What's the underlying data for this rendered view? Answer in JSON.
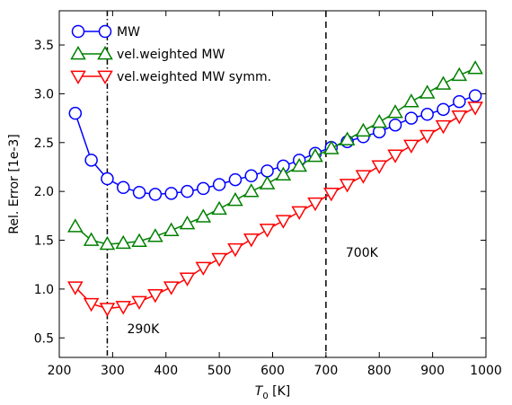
{
  "chart_data": {
    "type": "line",
    "xlabel": "T",
    "xlabel_sub": "0",
    "xlabel_unit": " [K]",
    "ylabel": "Rel. Error [1e-3]",
    "xlim": [
      200,
      1000
    ],
    "ylim": [
      0.3,
      3.85
    ],
    "xticks": [
      200,
      300,
      400,
      500,
      600,
      700,
      800,
      900,
      1000
    ],
    "yticks": [
      0.5,
      1.0,
      1.5,
      2.0,
      2.5,
      3.0,
      3.5
    ],
    "ytick_labels": [
      "0.5",
      "1.0",
      "1.5",
      "2.0",
      "2.5",
      "3.0",
      "3.5"
    ],
    "grid": false,
    "legend_position": "top-left",
    "vlines": [
      {
        "x": 290,
        "style": "dashdot",
        "label": "290K"
      },
      {
        "x": 700,
        "style": "dashed",
        "label": "700K"
      }
    ],
    "series": [
      {
        "name": "MW",
        "color": "#0000ff",
        "marker": "circle",
        "x": [
          230,
          260,
          290,
          320,
          350,
          380,
          410,
          440,
          470,
          500,
          530,
          560,
          590,
          620,
          650,
          680,
          710,
          740,
          770,
          800,
          830,
          860,
          890,
          920,
          950,
          980
        ],
        "y": [
          2.8,
          2.32,
          2.13,
          2.04,
          1.99,
          1.97,
          1.98,
          2.0,
          2.03,
          2.07,
          2.12,
          2.16,
          2.21,
          2.26,
          2.32,
          2.39,
          2.45,
          2.51,
          2.56,
          2.61,
          2.68,
          2.75,
          2.79,
          2.84,
          2.92,
          2.98
        ]
      },
      {
        "name": "vel.weighted MW",
        "color": "#008000",
        "marker": "triangle-up",
        "x": [
          230,
          260,
          290,
          320,
          350,
          380,
          410,
          440,
          470,
          500,
          530,
          560,
          590,
          620,
          650,
          680,
          710,
          740,
          770,
          800,
          830,
          860,
          890,
          920,
          950,
          980
        ],
        "y": [
          1.64,
          1.5,
          1.46,
          1.47,
          1.49,
          1.54,
          1.6,
          1.67,
          1.74,
          1.82,
          1.91,
          2.0,
          2.08,
          2.17,
          2.26,
          2.36,
          2.44,
          2.53,
          2.62,
          2.71,
          2.81,
          2.92,
          3.01,
          3.1,
          3.19,
          3.26
        ]
      },
      {
        "name": "vel.weighted MW symm.",
        "color": "#ff0000",
        "marker": "triangle-down",
        "x": [
          230,
          260,
          290,
          320,
          350,
          380,
          410,
          440,
          470,
          500,
          530,
          560,
          590,
          620,
          650,
          680,
          710,
          740,
          770,
          800,
          830,
          860,
          890,
          920,
          950,
          980
        ],
        "y": [
          1.02,
          0.85,
          0.8,
          0.82,
          0.87,
          0.94,
          1.02,
          1.11,
          1.22,
          1.31,
          1.41,
          1.51,
          1.61,
          1.7,
          1.79,
          1.88,
          1.98,
          2.07,
          2.16,
          2.26,
          2.37,
          2.47,
          2.57,
          2.67,
          2.77,
          2.86
        ]
      }
    ]
  }
}
